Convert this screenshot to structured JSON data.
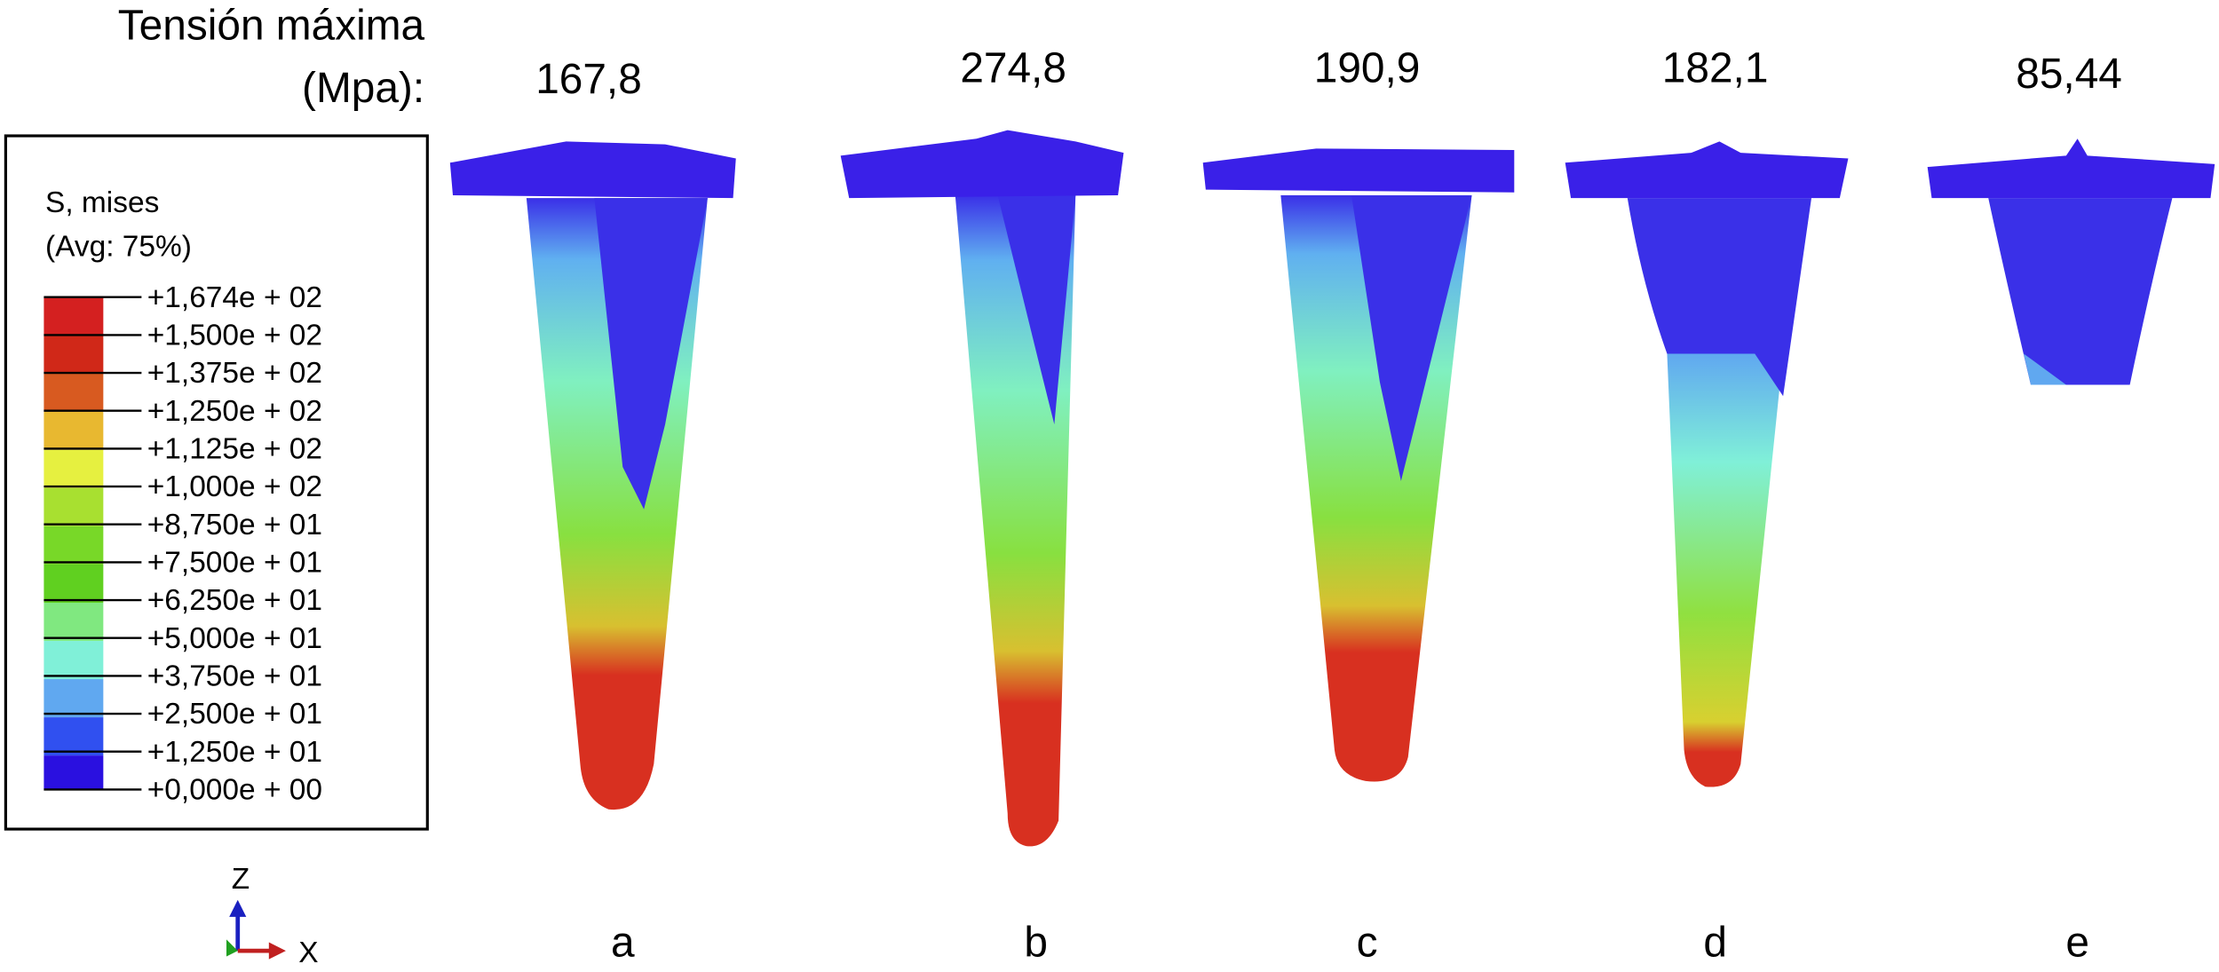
{
  "header": {
    "title": "Tensión máxima",
    "unit": "(Mpa):"
  },
  "models": [
    {
      "label": "a",
      "max_stress": "167,8"
    },
    {
      "label": "b",
      "max_stress": "274,8"
    },
    {
      "label": "c",
      "max_stress": "190,9"
    },
    {
      "label": "d",
      "max_stress": "182,1"
    },
    {
      "label": "e",
      "max_stress": "85,44"
    }
  ],
  "legend": {
    "title": "S, mises",
    "subtitle": "(Avg: 75%)",
    "labels": [
      "+1,674e + 02",
      "+1,500e + 02",
      "+1,375e + 02",
      "+1,250e + 02",
      "+1,125e + 02",
      "+1,000e + 02",
      "+8,750e + 01",
      "+7,500e + 01",
      "+6,250e + 01",
      "+5,000e + 01",
      "+3,750e + 01",
      "+2,500e + 01",
      "+1,250e + 01",
      "+0,000e + 00"
    ]
  },
  "axes": {
    "z": "Z",
    "x": "X"
  }
}
